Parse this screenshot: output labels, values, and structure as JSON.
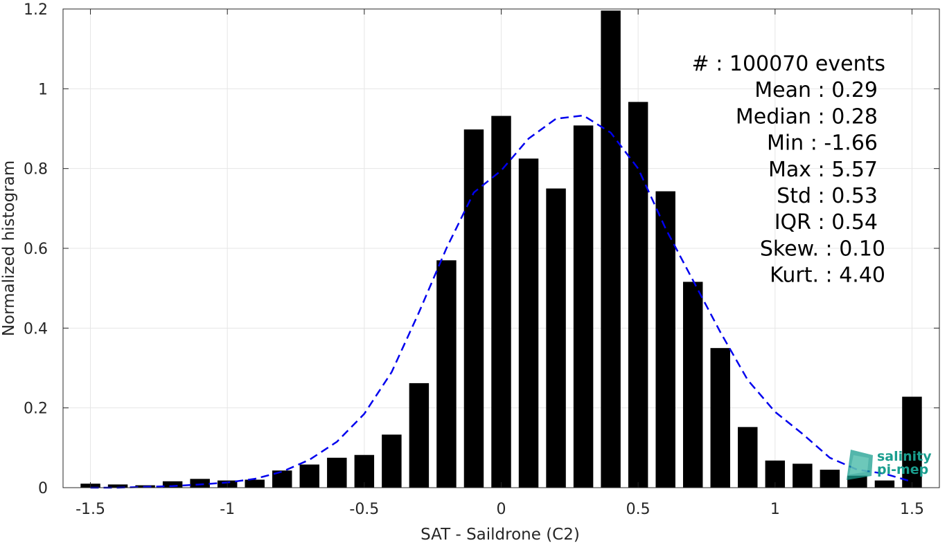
{
  "chart_data": {
    "type": "bar",
    "xlabel": "SAT - Saildrone (C2)",
    "ylabel": "Normalized histogram",
    "xlim": [
      -1.6,
      1.6
    ],
    "ylim": [
      0,
      1.2
    ],
    "x_ticks": [
      "-1.5",
      "-1",
      "-0.5",
      "0",
      "0.5",
      "1",
      "1.5"
    ],
    "y_ticks": [
      "0",
      "0.2",
      "0.4",
      "0.6",
      "0.8",
      "1",
      "1.2"
    ],
    "grid": true,
    "bar_color": "#000000",
    "fit_color": "#0000ee",
    "bars": {
      "x": [
        -1.5,
        -1.4,
        -1.3,
        -1.2,
        -1.1,
        -1.0,
        -0.9,
        -0.8,
        -0.7,
        -0.6,
        -0.5,
        -0.4,
        -0.3,
        -0.2,
        -0.1,
        0.0,
        0.1,
        0.2,
        0.3,
        0.4,
        0.5,
        0.6,
        0.7,
        0.8,
        0.9,
        1.0,
        1.1,
        1.2,
        1.3,
        1.4,
        1.5
      ],
      "values": [
        0.01,
        0.008,
        0.006,
        0.016,
        0.022,
        0.018,
        0.02,
        0.043,
        0.058,
        0.075,
        0.082,
        0.133,
        0.262,
        0.57,
        0.898,
        0.932,
        0.825,
        0.75,
        0.908,
        1.196,
        0.967,
        0.743,
        0.516,
        0.35,
        0.152,
        0.068,
        0.06,
        0.045,
        0.03,
        0.018,
        0.228
      ]
    },
    "fit_curve": {
      "x": [
        -1.5,
        -1.4,
        -1.3,
        -1.2,
        -1.1,
        -1.0,
        -0.9,
        -0.8,
        -0.7,
        -0.6,
        -0.5,
        -0.4,
        -0.3,
        -0.2,
        -0.1,
        0.0,
        0.1,
        0.2,
        0.3,
        0.4,
        0.5,
        0.6,
        0.7,
        0.8,
        0.9,
        1.0,
        1.1,
        1.2,
        1.3,
        1.4,
        1.5
      ],
      "y": [
        0.0,
        0.0,
        0.002,
        0.004,
        0.008,
        0.013,
        0.022,
        0.04,
        0.07,
        0.115,
        0.185,
        0.29,
        0.44,
        0.6,
        0.74,
        0.795,
        0.875,
        0.925,
        0.933,
        0.89,
        0.8,
        0.65,
        0.52,
        0.39,
        0.27,
        0.19,
        0.135,
        0.075,
        0.045,
        0.035,
        0.015
      ]
    },
    "stats": [
      {
        "label": "#  ",
        "value": ": 100070 events"
      },
      {
        "label": "Mean ",
        "value": ": 0.29"
      },
      {
        "label": "Median ",
        "value": ": 0.28"
      },
      {
        "label": "Min ",
        "value": ": -1.66"
      },
      {
        "label": "Max ",
        "value": ": 5.57"
      },
      {
        "label": "Std ",
        "value": ": 0.53"
      },
      {
        "label": "IQR ",
        "value": ": 0.54"
      },
      {
        "label": "Skew. ",
        "value": ": 0.10"
      },
      {
        "label": "Kurt. ",
        "value": ": 4.40"
      }
    ]
  },
  "logo": {
    "line1": "salinity",
    "line2": "pi-mep",
    "color": "#1a9e8f"
  }
}
